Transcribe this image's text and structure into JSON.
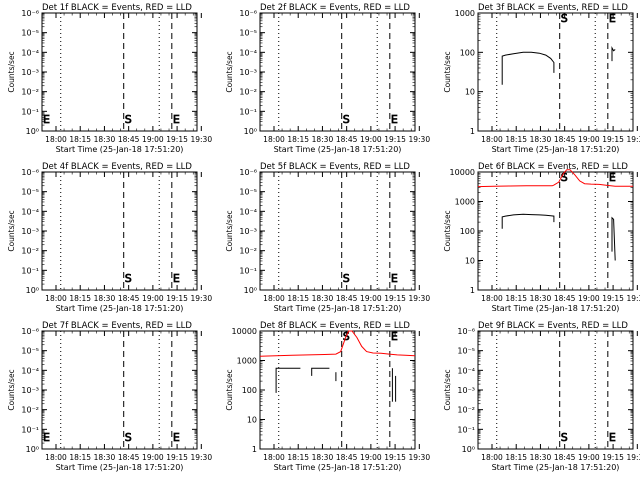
{
  "chart_data": [
    {
      "type": "line",
      "title": "Det 1f BLACK = Events, RED = LLD",
      "xlabel": "Start Time (25-Jan-18 17:51:20)",
      "ylabel": "Counts/sec",
      "yscale": "log",
      "xticks": [
        "18:00",
        "18:15",
        "18:30",
        "18:45",
        "19:00",
        "19:15",
        "19:30"
      ],
      "yticks": [
        "10⁰",
        "10⁻¹",
        "10⁻²",
        "10⁻³",
        "10⁻⁴",
        "10⁻⁵",
        "10⁻⁶"
      ],
      "markers": [
        {
          "label": "E",
          "x": 0.0
        },
        {
          "label": "S",
          "x": 50.6
        },
        {
          "label": "E",
          "x": 80.4
        }
      ],
      "dotted_x": [
        11.6,
        72.6
      ],
      "series": []
    },
    {
      "type": "line",
      "title": "Det 2f BLACK = Events, RED = LLD",
      "xlabel": "Start Time (25-Jan-18 17:51:20)",
      "ylabel": "Counts/sec",
      "yscale": "log",
      "xticks": [
        "18:00",
        "18:15",
        "18:30",
        "18:45",
        "19:00",
        "19:15",
        "19:30"
      ],
      "yticks": [
        "10⁰",
        "10⁻¹",
        "10⁻²",
        "10⁻³",
        "10⁻⁴",
        "10⁻⁵",
        "10⁻⁶"
      ],
      "markers": [
        {
          "label": "S",
          "x": 50.6
        },
        {
          "label": "E",
          "x": 80.4
        }
      ],
      "dotted_x": [
        11.6,
        72.6
      ],
      "series": []
    },
    {
      "type": "line",
      "title": "Det 3f BLACK = Events, RED = LLD",
      "xlabel": "Start Time (25-Jan-18 17:51:20)",
      "ylabel": "Counts/sec",
      "yscale": "log",
      "xticks": [
        "18:00",
        "18:15",
        "18:30",
        "18:45",
        "19:00",
        "19:15",
        "19:30"
      ],
      "yticks": [
        "1",
        "10",
        "100",
        "1000"
      ],
      "markers": [
        {
          "label": "S",
          "x": 50.6
        },
        {
          "label": "E",
          "x": 80.4
        }
      ],
      "dotted_x": [
        11.6,
        72.6
      ],
      "series": [
        {
          "color": "#000000",
          "segments": [
            [
              [
                15,
                15
              ],
              [
                15,
                80
              ],
              [
                17,
                85
              ],
              [
                22,
                92
              ],
              [
                28,
                100
              ],
              [
                33,
                100
              ],
              [
                38,
                95
              ],
              [
                42,
                85
              ],
              [
                45,
                70
              ],
              [
                47,
                55
              ],
              [
                47,
                30
              ]
            ],
            [
              [
                83,
                60
              ],
              [
                83,
                130
              ],
              [
                84,
                110
              ],
              [
                85,
                118
              ]
            ]
          ]
        }
      ]
    },
    {
      "type": "line",
      "title": "Det 4f BLACK = Events, RED = LLD",
      "xlabel": "Start Time (25-Jan-18 17:51:20)",
      "ylabel": "Counts/sec",
      "yscale": "log",
      "xticks": [
        "18:00",
        "18:15",
        "18:30",
        "18:45",
        "19:00",
        "19:15",
        "19:30"
      ],
      "yticks": [
        "10⁰",
        "10⁻¹",
        "10⁻²",
        "10⁻³",
        "10⁻⁴",
        "10⁻⁵",
        "10⁻⁶"
      ],
      "markers": [
        {
          "label": "S",
          "x": 50.6
        },
        {
          "label": "E",
          "x": 80.4
        }
      ],
      "dotted_x": [
        11.6,
        72.6
      ],
      "series": []
    },
    {
      "type": "line",
      "title": "Det 5f BLACK = Events, RED = LLD",
      "xlabel": "Start Time (25-Jan-18 17:51:20)",
      "ylabel": "Counts/sec",
      "yscale": "log",
      "xticks": [
        "18:00",
        "18:15",
        "18:30",
        "18:45",
        "19:00",
        "19:15",
        "19:30"
      ],
      "yticks": [
        "10⁰",
        "10⁻¹",
        "10⁻²",
        "10⁻³",
        "10⁻⁴",
        "10⁻⁵",
        "10⁻⁶"
      ],
      "markers": [
        {
          "label": "S",
          "x": 50.6
        },
        {
          "label": "E",
          "x": 80.4
        }
      ],
      "dotted_x": [
        11.6,
        72.6
      ],
      "series": []
    },
    {
      "type": "line",
      "title": "Det 6f BLACK = Events, RED = LLD",
      "xlabel": "Start Time (25-Jan-18 17:51:20)",
      "ylabel": "Counts/sec",
      "yscale": "log",
      "xticks": [
        "18:00",
        "18:15",
        "18:30",
        "18:45",
        "19:00",
        "19:15",
        "19:30"
      ],
      "yticks": [
        "1",
        "10",
        "100",
        "1000",
        "10000"
      ],
      "markers": [
        {
          "label": "S",
          "x": 50.6
        },
        {
          "label": "E",
          "x": 80.4
        }
      ],
      "dotted_x": [
        11.6,
        72.6
      ],
      "series": [
        {
          "color": "#ff0000",
          "segments": [
            [
              [
                0,
                3200
              ],
              [
                10,
                3300
              ],
              [
                20,
                3350
              ],
              [
                30,
                3400
              ],
              [
                40,
                3400
              ],
              [
                46,
                3400
              ],
              [
                47,
                3600
              ],
              [
                50,
                4500
              ],
              [
                53,
                9000
              ],
              [
                55,
                12000
              ],
              [
                57,
                12000
              ],
              [
                60,
                8000
              ],
              [
                63,
                5000
              ],
              [
                66,
                4000
              ],
              [
                70,
                3900
              ],
              [
                75,
                3800
              ],
              [
                80,
                3500
              ],
              [
                85,
                3300
              ],
              [
                90,
                3300
              ],
              [
                96,
                3300
              ]
            ]
          ]
        },
        {
          "color": "#000000",
          "segments": [
            [
              [
                15,
                120
              ],
              [
                15,
                300
              ],
              [
                17,
                320
              ],
              [
                22,
                350
              ],
              [
                28,
                370
              ],
              [
                33,
                360
              ],
              [
                38,
                350
              ],
              [
                42,
                340
              ],
              [
                45,
                330
              ],
              [
                47,
                320
              ],
              [
                47,
                200
              ]
            ],
            [
              [
                83,
                20
              ],
              [
                83,
                280
              ],
              [
                84,
                250
              ],
              [
                85,
                10
              ]
            ]
          ]
        }
      ]
    },
    {
      "type": "line",
      "title": "Det 7f BLACK = Events, RED = LLD",
      "xlabel": "Start Time (25-Jan-18 17:51:20)",
      "ylabel": "Counts/sec",
      "yscale": "log",
      "xticks": [
        "18:00",
        "18:15",
        "18:30",
        "18:45",
        "19:00",
        "19:15",
        "19:30"
      ],
      "yticks": [
        "10⁰",
        "10⁻¹",
        "10⁻²",
        "10⁻³",
        "10⁻⁴",
        "10⁻⁵",
        "10⁻⁶"
      ],
      "markers": [
        {
          "label": "E",
          "x": 0.0
        },
        {
          "label": "S",
          "x": 50.6
        },
        {
          "label": "E",
          "x": 80.4
        }
      ],
      "dotted_x": [
        11.6,
        72.6
      ],
      "series": []
    },
    {
      "type": "line",
      "title": "Det 8f BLACK = Events, RED = LLD",
      "xlabel": "Start Time (25-Jan-18 17:51:20)",
      "ylabel": "Counts/sec",
      "yscale": "log",
      "xticks": [
        "18:00",
        "18:15",
        "18:30",
        "18:45",
        "19:00",
        "19:15",
        "19:30"
      ],
      "yticks": [
        "1",
        "10",
        "100",
        "1000",
        "10000"
      ],
      "markers": [
        {
          "label": "S",
          "x": 50.6
        },
        {
          "label": "E",
          "x": 80.4
        }
      ],
      "dotted_x": [
        11.6,
        72.6
      ],
      "series": [
        {
          "color": "#ff0000",
          "segments": [
            [
              [
                0,
                1400
              ],
              [
                10,
                1450
              ],
              [
                20,
                1500
              ],
              [
                30,
                1550
              ],
              [
                40,
                1600
              ],
              [
                47,
                1650
              ],
              [
                50,
                2000
              ],
              [
                53,
                6000
              ],
              [
                55,
                10000
              ],
              [
                57,
                10000
              ],
              [
                60,
                6000
              ],
              [
                63,
                3000
              ],
              [
                66,
                2000
              ],
              [
                70,
                1800
              ],
              [
                75,
                1750
              ],
              [
                80,
                1650
              ],
              [
                85,
                1550
              ],
              [
                90,
                1500
              ],
              [
                96,
                1450
              ]
            ]
          ]
        },
        {
          "color": "#000000",
          "segments": [
            [
              [
                10,
                80
              ],
              [
                10,
                550
              ],
              [
                25,
                550
              ]
            ],
            [
              [
                32,
                300
              ],
              [
                32,
                550
              ],
              [
                43,
                550
              ]
            ],
            [
              [
                47,
                200
              ],
              [
                47,
                400
              ]
            ],
            [
              [
                82,
                40
              ],
              [
                82,
                550
              ]
            ],
            [
              [
                84,
                40
              ],
              [
                84,
                300
              ]
            ]
          ]
        }
      ]
    },
    {
      "type": "line",
      "title": "Det 9f BLACK = Events, RED = LLD",
      "xlabel": "Start Time (25-Jan-18 17:51:20)",
      "ylabel": "Counts/sec",
      "yscale": "log",
      "xticks": [
        "18:00",
        "18:15",
        "18:30",
        "18:45",
        "19:00",
        "19:15",
        "19:30"
      ],
      "yticks": [
        "10⁰",
        "10⁻¹",
        "10⁻²",
        "10⁻³",
        "10⁻⁴",
        "10⁻⁵",
        "10⁻⁶"
      ],
      "markers": [
        {
          "label": "S",
          "x": 50.6
        },
        {
          "label": "E",
          "x": 80.4
        }
      ],
      "dotted_x": [
        11.6,
        72.6
      ],
      "series": []
    }
  ]
}
